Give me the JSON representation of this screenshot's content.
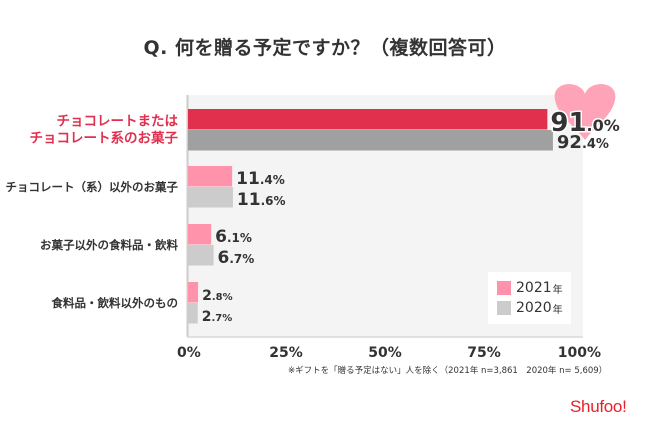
{
  "title": "Q. 何を贈る予定ですか？（複数回答可）",
  "chart_data": {
    "type": "bar",
    "orientation": "horizontal",
    "title": "Q. 何を贈る予定ですか？（複数回答可）",
    "categories": [
      [
        "チョコレートまたは",
        "チョコレート系のお菓子"
      ],
      [
        "チョコレート（系）以外のお菓子"
      ],
      [
        "お菓子以外の食料品・飲料"
      ],
      [
        "食料品・飲料以外のもの"
      ]
    ],
    "highlight_category_index": 0,
    "series": [
      {
        "name": "2021",
        "suffix": "年",
        "values": [
          91.0,
          11.4,
          6.1,
          2.8
        ],
        "labels": [
          [
            "91",
            ".0%"
          ],
          [
            "11",
            ".4%"
          ],
          [
            "6",
            ".1%"
          ],
          [
            "2",
            ".8%"
          ]
        ],
        "color": "#ff93ab",
        "highlight_color": "#e0304e"
      },
      {
        "name": "2020",
        "suffix": "年",
        "values": [
          92.4,
          11.6,
          6.7,
          2.7
        ],
        "labels": [
          [
            "92",
            ".4%"
          ],
          [
            "11",
            ".6%"
          ],
          [
            "6",
            ".7%"
          ],
          [
            "2",
            ".7%"
          ]
        ],
        "color": "#cccccc",
        "highlight_color": "#a0a0a0"
      }
    ],
    "xlim": [
      0,
      100
    ],
    "xticks": [
      "0%",
      "25%",
      "50%",
      "75%",
      "100%"
    ],
    "xlabel": "",
    "ylabel": "",
    "legend": "bottom-right",
    "grid": false,
    "highlight_shape": "heart",
    "highlight_shape_color": "#ffa3b8"
  },
  "footnote": "※ギフトを「贈る予定はない」人を除く（2021年 n=3,861　2020年 n= 5,609）",
  "legend": [
    {
      "year": "2021",
      "suffix": "年",
      "color": "#ff93ab"
    },
    {
      "year": "2020",
      "suffix": "年",
      "color": "#cccccc"
    }
  ],
  "brand": {
    "logo_text": "Shufoo!",
    "color": "#e8202a"
  }
}
